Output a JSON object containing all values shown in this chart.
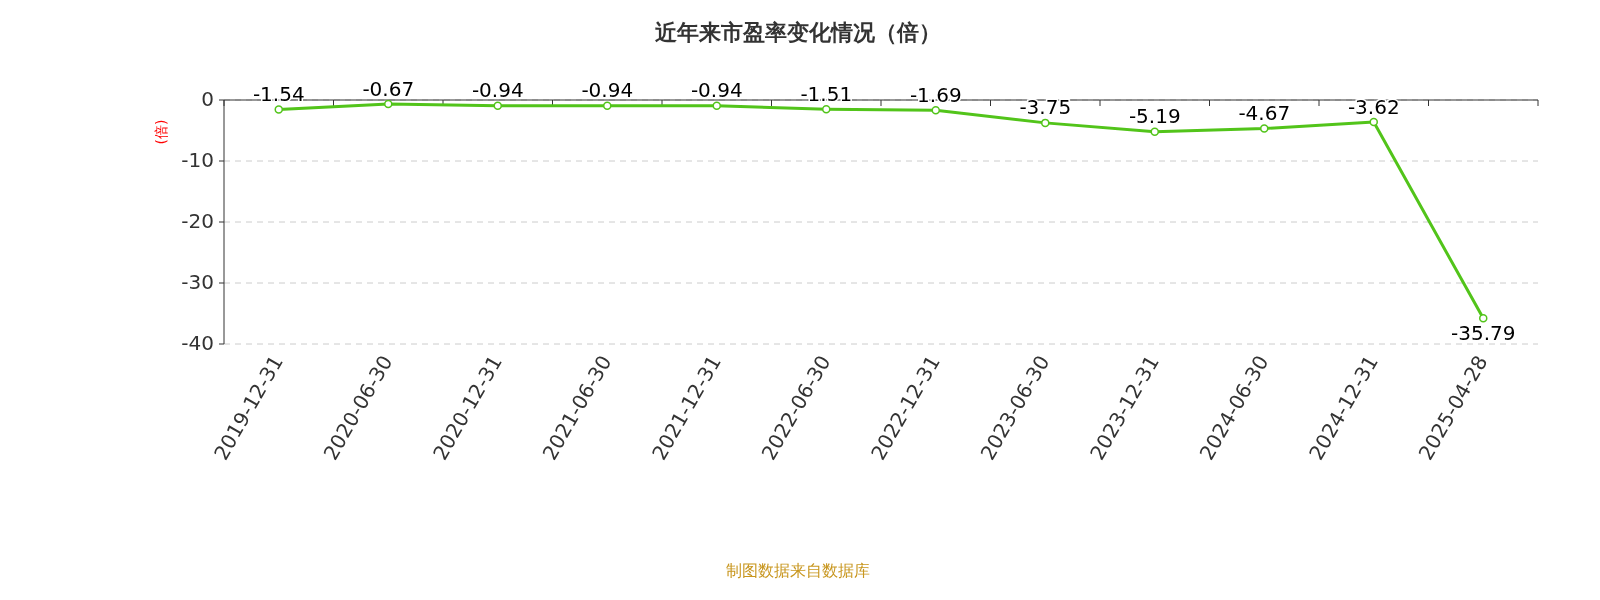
{
  "chart_data": {
    "type": "line",
    "title": "近年来市盈率变化情况（倍）",
    "ylabel": "(倍)",
    "categories": [
      "2019-12-31",
      "2020-06-30",
      "2020-12-31",
      "2021-06-30",
      "2021-12-31",
      "2022-06-30",
      "2022-12-31",
      "2023-06-30",
      "2023-12-31",
      "2024-06-30",
      "2024-12-31",
      "2025-04-28"
    ],
    "series": [
      {
        "color": "#52c41a",
        "values": [
          -1.54,
          -0.67,
          -0.94,
          -0.94,
          -0.94,
          -1.51,
          -1.69,
          -3.75,
          -5.19,
          -4.67,
          -3.62,
          -35.79
        ]
      }
    ],
    "ylim": [
      -40,
      0
    ],
    "yticks": [
      0,
      -10,
      -20,
      -30,
      -40
    ],
    "grid": "y",
    "marker": "circle",
    "line_style": "solid",
    "data_labels": true,
    "annotations": [
      "制图数据来自数据库"
    ]
  }
}
